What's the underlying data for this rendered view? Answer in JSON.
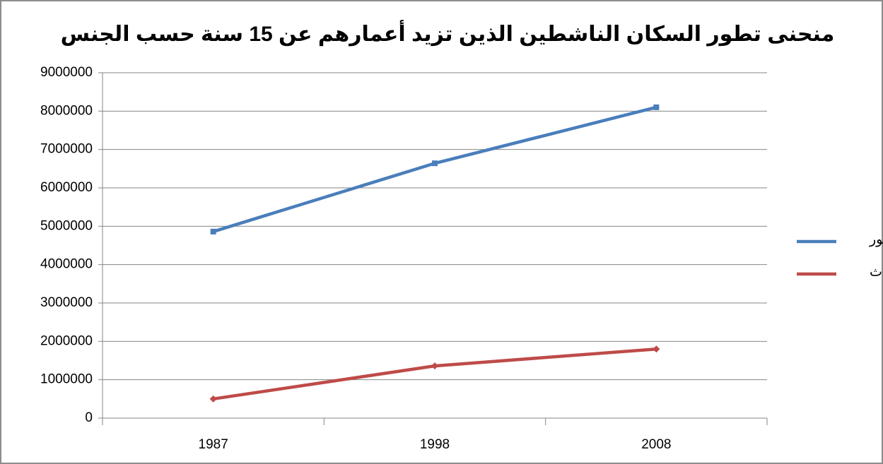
{
  "chart_data": {
    "type": "line",
    "title": "منحنى تطور السكان الناشطين الذين تزيد أعمارهم عن 15 سنة حسب الجنس",
    "categories": [
      "1987",
      "1998",
      "2008"
    ],
    "series": [
      {
        "name": "ذكور",
        "color": "#4a7ebb",
        "values": [
          4860000,
          6640000,
          8100000
        ]
      },
      {
        "name": "إناث",
        "color": "#be4b48",
        "values": [
          500000,
          1360000,
          1800000
        ]
      }
    ],
    "ylim": [
      0,
      9000000
    ],
    "yticks": [
      0,
      1000000,
      2000000,
      3000000,
      4000000,
      5000000,
      6000000,
      7000000,
      8000000,
      9000000
    ],
    "grid": true,
    "legend": "right"
  }
}
